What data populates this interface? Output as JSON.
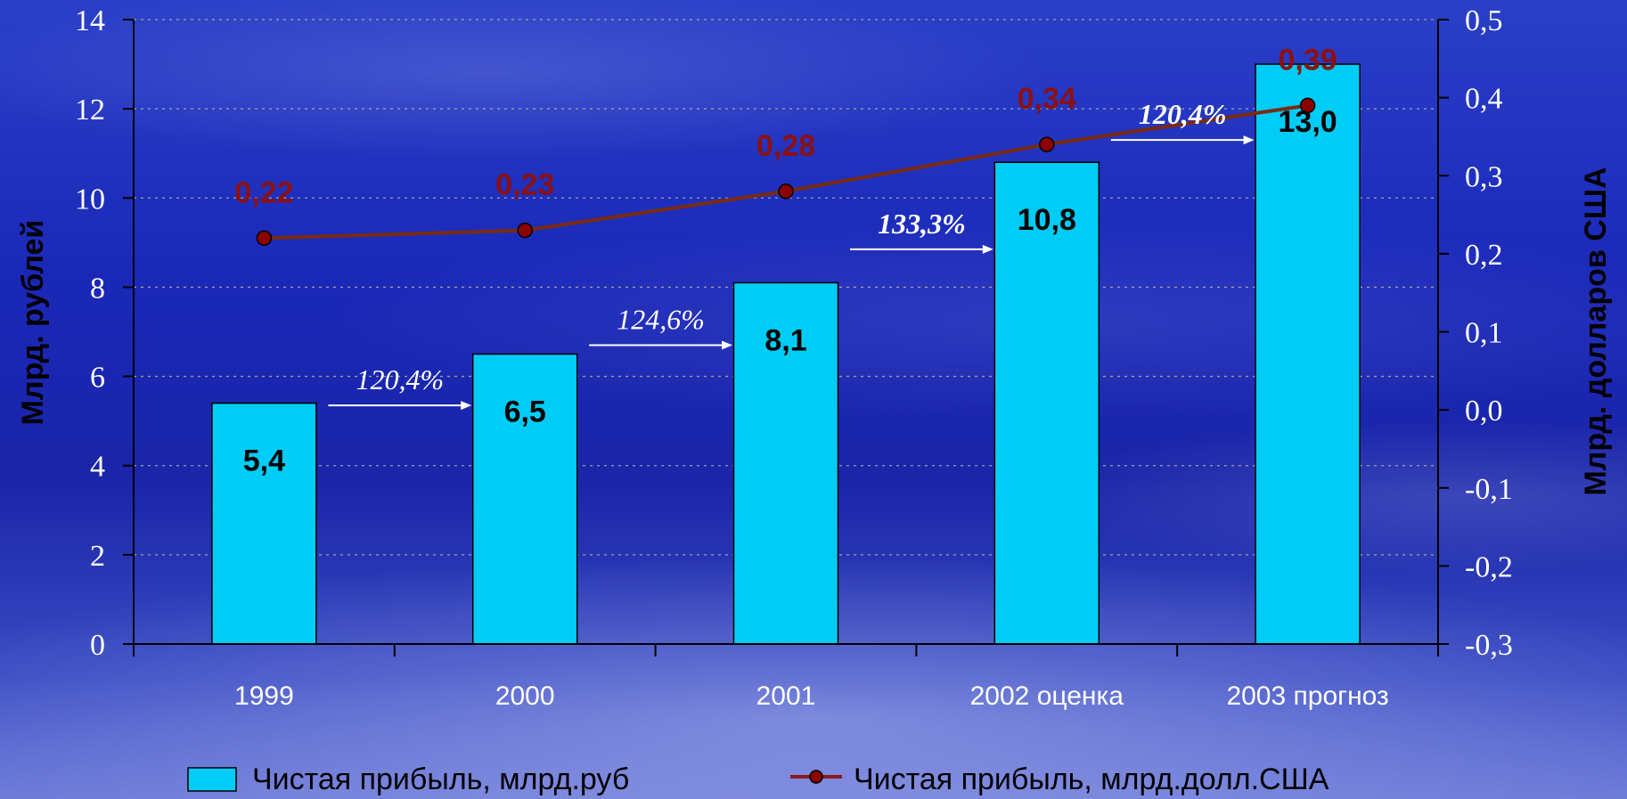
{
  "chart_data": {
    "type": "bar",
    "categories": [
      "1999",
      "2000",
      "2001",
      "2002 оценка",
      "2003 прогноз"
    ],
    "series": [
      {
        "name": "Чистая прибыль, млрд.руб",
        "type": "bar",
        "axis": "left",
        "values": [
          5.4,
          6.5,
          8.1,
          10.8,
          13.0
        ],
        "labels": [
          "5,4",
          "6,5",
          "8,1",
          "10,8",
          "13,0"
        ],
        "color": "#00ccf5"
      },
      {
        "name": "Чистая прибыль, млрд.долл.США",
        "type": "line",
        "axis": "right",
        "values": [
          0.22,
          0.23,
          0.28,
          0.34,
          0.39
        ],
        "labels": [
          "0,22",
          "0,23",
          "0,28",
          "0,34",
          "0,39"
        ],
        "color": "#8b1a1a"
      }
    ],
    "growth": [
      {
        "from": 0,
        "to": 1,
        "label": "120,4%",
        "bold": false
      },
      {
        "from": 1,
        "to": 2,
        "label": "124,6%",
        "bold": false
      },
      {
        "from": 2,
        "to": 3,
        "label": "133,3%",
        "bold": true
      },
      {
        "from": 3,
        "to": 4,
        "label": "120,4%",
        "bold": true
      }
    ],
    "ylabel": "Млрд. рублей",
    "ylabel_right": "Млрд. долларов США",
    "ylim": [
      0,
      14
    ],
    "yticks": [
      "0",
      "2",
      "4",
      "6",
      "8",
      "10",
      "12",
      "14"
    ],
    "ylim_right": [
      -0.3,
      0.5
    ],
    "yticks_right": [
      "-0,3",
      "-0,2",
      "-0,1",
      "0,0",
      "0,1",
      "0,2",
      "0,3",
      "0,4",
      "0,5"
    ],
    "grid": "horizontal dotted",
    "legend": "bottom"
  },
  "colors": {
    "bar": "#00ccf5",
    "line": "#8b1a1a",
    "line_label": "#8b1010",
    "axis": "#000000"
  }
}
